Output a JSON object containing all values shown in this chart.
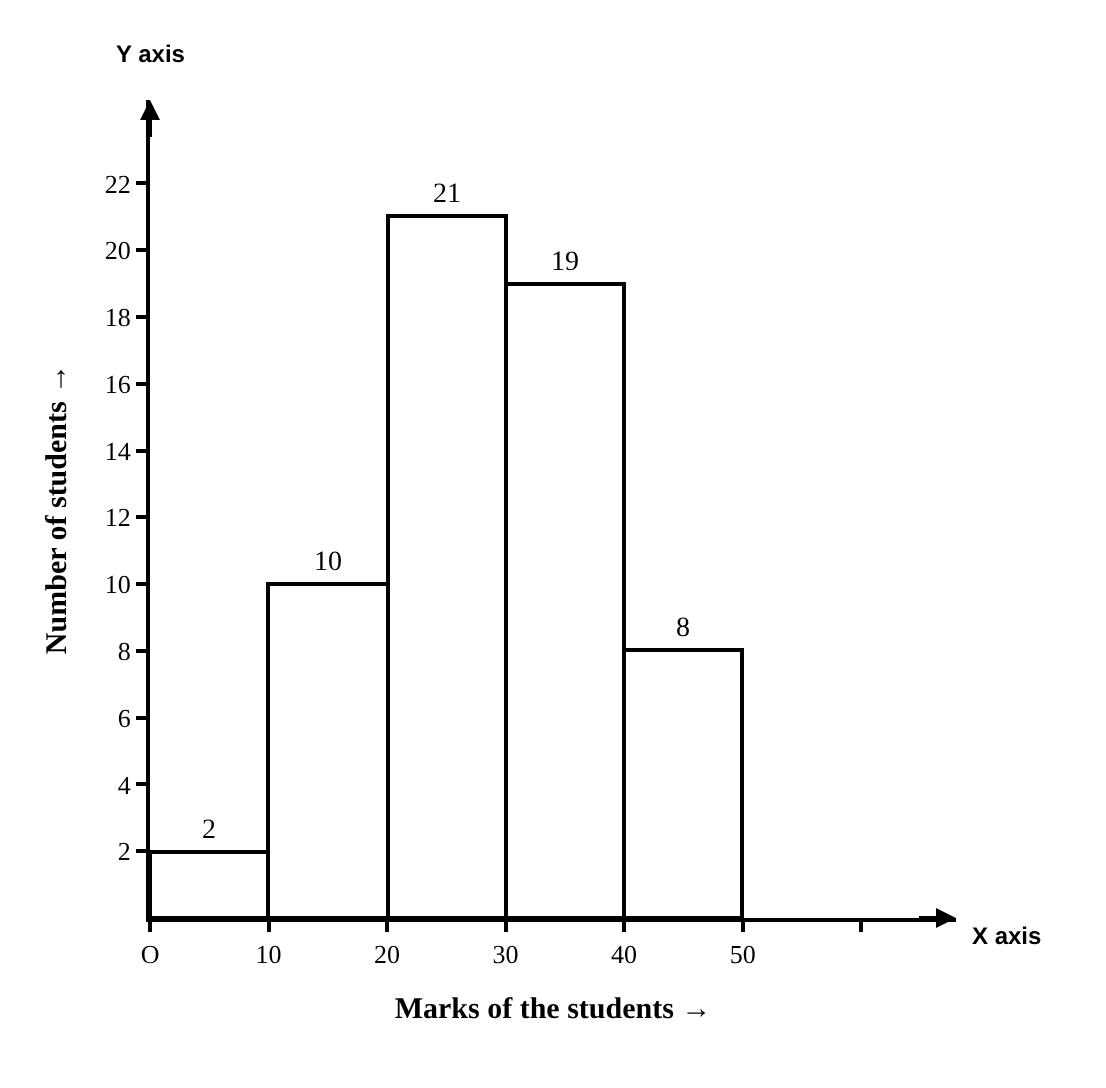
{
  "chart_data": {
    "type": "histogram",
    "bins": [
      0,
      10,
      20,
      30,
      40,
      50
    ],
    "values": [
      2,
      10,
      21,
      19,
      8
    ],
    "color": "#ffffff",
    "data_labels": true,
    "xlabel": "Marks of the students →",
    "ylabel": "Number of students →",
    "annotations": [
      "Y axis",
      "X axis"
    ],
    "xlim": [
      0,
      68
    ],
    "ylim": [
      0,
      24.5
    ],
    "xticks": [
      {
        "value": 0,
        "label": "O"
      },
      10,
      20,
      30,
      40,
      50,
      {
        "value": 60,
        "label": null
      }
    ],
    "yticks": [
      2,
      4,
      6,
      8,
      10,
      12,
      14,
      16,
      18,
      20,
      22
    ]
  }
}
